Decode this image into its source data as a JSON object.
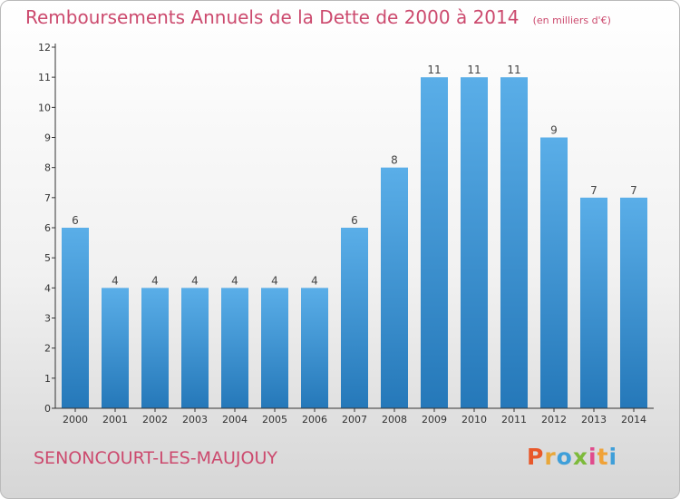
{
  "header": {
    "title": "Remboursements Annuels de la Dette de 2000 à 2014",
    "unit": "(en milliers d'€)"
  },
  "footer": {
    "commune": "SENONCOURT-LES-MAUJOUY",
    "logo": {
      "letters": [
        "P",
        "r",
        "o",
        "x",
        "i",
        "t",
        "i"
      ],
      "colors": [
        "#e8582a",
        "#e8a73a",
        "#3f9fd9",
        "#7dba3b",
        "#e04b8c",
        "#f0a238",
        "#3f9fd9"
      ]
    }
  },
  "colors": {
    "bar_light": "#5aaee8",
    "bar_dark": "#2578b9",
    "title": "#cc4a6e",
    "axis": "#333333"
  },
  "chart_data": {
    "type": "bar",
    "title": "Remboursements Annuels de la Dette de 2000 à 2014",
    "subtitle": "(en milliers d'€)",
    "categories": [
      "2000",
      "2001",
      "2002",
      "2003",
      "2004",
      "2005",
      "2006",
      "2007",
      "2008",
      "2009",
      "2010",
      "2011",
      "2012",
      "2013",
      "2014"
    ],
    "values": [
      6,
      4,
      4,
      4,
      4,
      4,
      4,
      6,
      8,
      11,
      11,
      11,
      9,
      7,
      7
    ],
    "data_labels": [
      "6",
      "4",
      "4",
      "4",
      "4",
      "4",
      "4",
      "6",
      "8",
      "11",
      "11",
      "11",
      "9",
      "7",
      "7"
    ],
    "ylim": [
      0,
      12
    ],
    "yticks": [
      0,
      1,
      2,
      3,
      4,
      5,
      6,
      7,
      8,
      9,
      10,
      11,
      12
    ],
    "xlabel": "",
    "ylabel": "",
    "grid": false,
    "legend": "none"
  }
}
